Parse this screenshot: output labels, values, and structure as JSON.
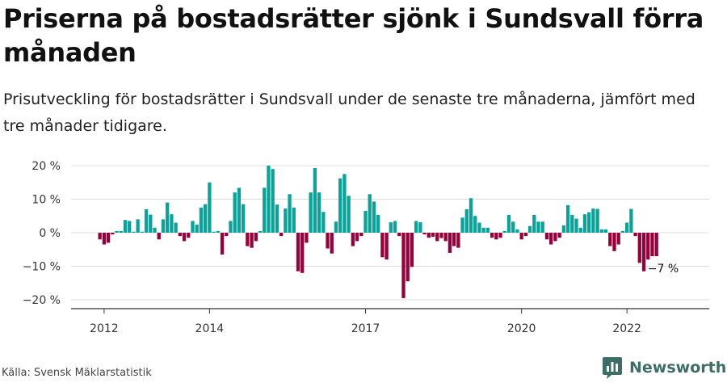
{
  "title": "Priserna på bostadsrätter sjönk i Sundsvall förra månaden",
  "subtitle": "Prisutveckling för bostadsrätter i Sundsvall under de senaste tre månaderna, jämfört med tre månader tidigare.",
  "source": "Källa: Svensk Mäklarstatistik",
  "brand": "Newsworthy",
  "colors": {
    "positive": "#0aa39a",
    "negative": "#98003c",
    "grid": "#dddddd",
    "axis": "#333333",
    "brand": "#3d6e66"
  },
  "chart_data": {
    "type": "bar",
    "title": "Priserna på bostadsrätter sjönk i Sundsvall förra månaden",
    "xlabel": "",
    "ylabel": "",
    "unit": "%",
    "ylim": [
      -22,
      22
    ],
    "y_ticks": [
      20,
      10,
      0,
      -10,
      -20
    ],
    "y_tick_labels": [
      "20 %",
      "10 %",
      "0 %",
      "−10 %",
      "−20 %"
    ],
    "x_tick_labels": [
      {
        "label": "2012",
        "index": 1
      },
      {
        "label": "2014",
        "index": 26
      },
      {
        "label": "2017",
        "index": 63
      },
      {
        "label": "2020",
        "index": 100
      },
      {
        "label": "2022",
        "index": 125
      }
    ],
    "categories_note": "Monthly values, one bar per month, from late 2011 to mid 2023",
    "values": [
      -2,
      -3.5,
      -3,
      -0.5,
      0.5,
      0.5,
      3.8,
      3.5,
      0.3,
      4,
      0.3,
      7,
      5.4,
      1.5,
      -2,
      4,
      9,
      5.5,
      3,
      -1,
      -2.5,
      -1.5,
      3.5,
      2.4,
      7.5,
      8.5,
      15,
      0.3,
      0.5,
      -6.5,
      -1,
      3.5,
      12,
      13.4,
      8.5,
      -4,
      -4.5,
      -2.5,
      0.5,
      13.4,
      20,
      19,
      8.4,
      -1,
      7.2,
      11.5,
      7.5,
      -11.5,
      -12,
      -3,
      12,
      19.3,
      12,
      6.2,
      -4.7,
      -6.2,
      3.3,
      16.2,
      17.5,
      11,
      -4,
      -2.5,
      -1,
      6.5,
      11.5,
      9.3,
      5.3,
      -7.3,
      -8,
      3.1,
      3.5,
      -1,
      -19.5,
      -14.5,
      -10.2,
      3.5,
      3.1,
      -0.5,
      -1.5,
      -1.2,
      -2.5,
      -1.6,
      -2.5,
      -6,
      -4,
      -4.5,
      4.5,
      7,
      10.3,
      5,
      3,
      1.5,
      1.5,
      -1.5,
      -2,
      -1.5,
      0.5,
      5.3,
      3.3,
      1,
      -2,
      -1,
      2,
      5.3,
      3.3,
      3.3,
      -2,
      -3.5,
      -2.5,
      -1.5,
      2.2,
      8.2,
      5.3,
      4.2,
      1.5,
      5.5,
      6.1,
      7.2,
      7.1,
      1,
      1,
      -4,
      -5.5,
      -3.5,
      0.5,
      3,
      7.1,
      -1,
      -9,
      -11.5,
      -8,
      -7,
      -7
    ],
    "annotations": [
      {
        "text": "−7 %",
        "index": 133,
        "value": -7
      }
    ]
  }
}
